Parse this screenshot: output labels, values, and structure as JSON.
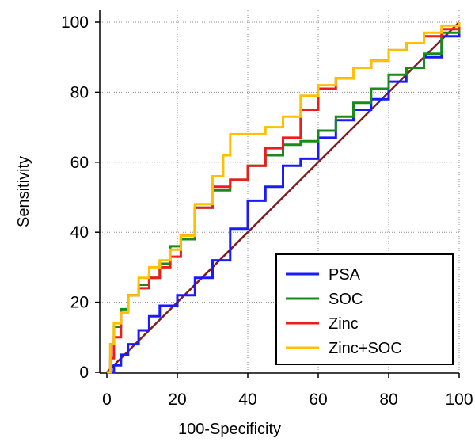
{
  "chart_data": {
    "type": "line",
    "title": "",
    "xlabel": "100-Specificity",
    "ylabel": "Sensitivity",
    "xlim": [
      0,
      100
    ],
    "ylim": [
      0,
      100
    ],
    "xticks": [
      "0",
      "20",
      "40",
      "60",
      "80",
      "100"
    ],
    "yticks": [
      "0",
      "20",
      "40",
      "60",
      "80",
      "100"
    ],
    "grid": true,
    "legend_position": "bottom-right",
    "reference_line": {
      "x": [
        0,
        100
      ],
      "y": [
        0,
        100
      ],
      "color": "#7f1d1d"
    },
    "series": [
      {
        "name": "PSA",
        "color": "#1a1aff",
        "x": [
          0,
          2,
          4,
          6,
          9,
          12,
          15,
          20,
          25,
          30,
          35,
          40,
          45,
          50,
          55,
          60,
          65,
          70,
          75,
          80,
          85,
          90,
          95,
          100
        ],
        "y": [
          0,
          2,
          5,
          8,
          12,
          16,
          19,
          22,
          27,
          32,
          41,
          49,
          53,
          59,
          61,
          67,
          72,
          75,
          78,
          83,
          87,
          90,
          96,
          100
        ]
      },
      {
        "name": "SOC",
        "color": "#1a8a1a",
        "x": [
          0,
          1,
          2,
          4,
          6,
          9,
          12,
          15,
          18,
          21,
          25,
          30,
          35,
          40,
          45,
          50,
          55,
          60,
          65,
          70,
          75,
          80,
          85,
          90,
          95,
          100
        ],
        "y": [
          0,
          8,
          13,
          18,
          22,
          25,
          27,
          31,
          36,
          38,
          47,
          52,
          55,
          59,
          62,
          65,
          66,
          69,
          73,
          77,
          81,
          85,
          87,
          91,
          97,
          100
        ]
      },
      {
        "name": "Zinc",
        "color": "#ee1c1c",
        "x": [
          0,
          1,
          2,
          4,
          6,
          9,
          12,
          15,
          18,
          21,
          25,
          30,
          35,
          40,
          45,
          50,
          55,
          60,
          65,
          70,
          75,
          80,
          85,
          90,
          95,
          100
        ],
        "y": [
          0,
          4,
          10,
          17,
          22,
          24,
          27,
          30,
          33,
          39,
          47,
          53,
          55,
          59,
          64,
          67,
          75,
          81,
          84,
          87,
          89,
          92,
          94,
          96,
          98,
          100
        ]
      },
      {
        "name": "Zinc+SOC",
        "color": "#ffc000",
        "x": [
          0,
          1,
          2,
          4,
          6,
          9,
          12,
          15,
          18,
          21,
          25,
          30,
          33,
          35,
          40,
          45,
          50,
          55,
          60,
          65,
          70,
          75,
          80,
          85,
          90,
          95,
          100
        ],
        "y": [
          0,
          8,
          14,
          17,
          22,
          27,
          30,
          32,
          35,
          39,
          48,
          56,
          62,
          68,
          68,
          70,
          73,
          79,
          82,
          84,
          87,
          89,
          92,
          94,
          97,
          99,
          100
        ]
      }
    ]
  }
}
